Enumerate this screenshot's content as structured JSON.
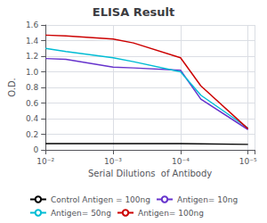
{
  "chart_data": {
    "type": "line",
    "title": "ELISA Result",
    "x_label": "Serial Dilutions  of Antibody",
    "y_label": "O.D.",
    "log": "x",
    "xlim": [
      0.01,
      8e-06
    ],
    "xticks": [
      {
        "value": 0.01,
        "label": "10⁻²"
      },
      {
        "value": 0.001,
        "label": "10⁻³"
      },
      {
        "value": 0.0001,
        "label": "10⁻⁴"
      },
      {
        "value": 1e-05,
        "label": "10⁻⁵"
      }
    ],
    "ylim": [
      0,
      1.6
    ],
    "yticks": [
      0,
      0.2,
      0.4,
      0.6,
      0.8,
      {
        "value": 1.0,
        "label": "1.0"
      },
      1.2,
      1.4,
      1.6
    ],
    "grid": true,
    "legend": "bottom",
    "series": [
      {
        "name": "Control Antigen = 100ng",
        "color": "#000000",
        "x": [
          0.01,
          0.001,
          0.0001,
          1e-05
        ],
        "values": [
          0.08,
          0.08,
          0.08,
          0.07
        ]
      },
      {
        "name": "Antigen= 10ng",
        "color": "#6633cc",
        "x": [
          0.01,
          0.005,
          0.001,
          0.0005,
          0.0001,
          5e-05,
          1e-05
        ],
        "values": [
          1.17,
          1.16,
          1.06,
          1.05,
          1.02,
          0.65,
          0.26
        ]
      },
      {
        "name": "Antigen= 50ng",
        "color": "#00bcd4",
        "x": [
          0.01,
          0.005,
          0.001,
          0.0005,
          0.0001,
          5e-05,
          1e-05
        ],
        "values": [
          1.3,
          1.26,
          1.18,
          1.13,
          1.0,
          0.7,
          0.28
        ]
      },
      {
        "name": "Antigen= 100ng",
        "color": "#cc0000",
        "x": [
          0.01,
          0.005,
          0.001,
          0.0005,
          0.0001,
          5e-05,
          1e-05
        ],
        "values": [
          1.47,
          1.46,
          1.42,
          1.37,
          1.18,
          0.82,
          0.27
        ]
      }
    ]
  }
}
